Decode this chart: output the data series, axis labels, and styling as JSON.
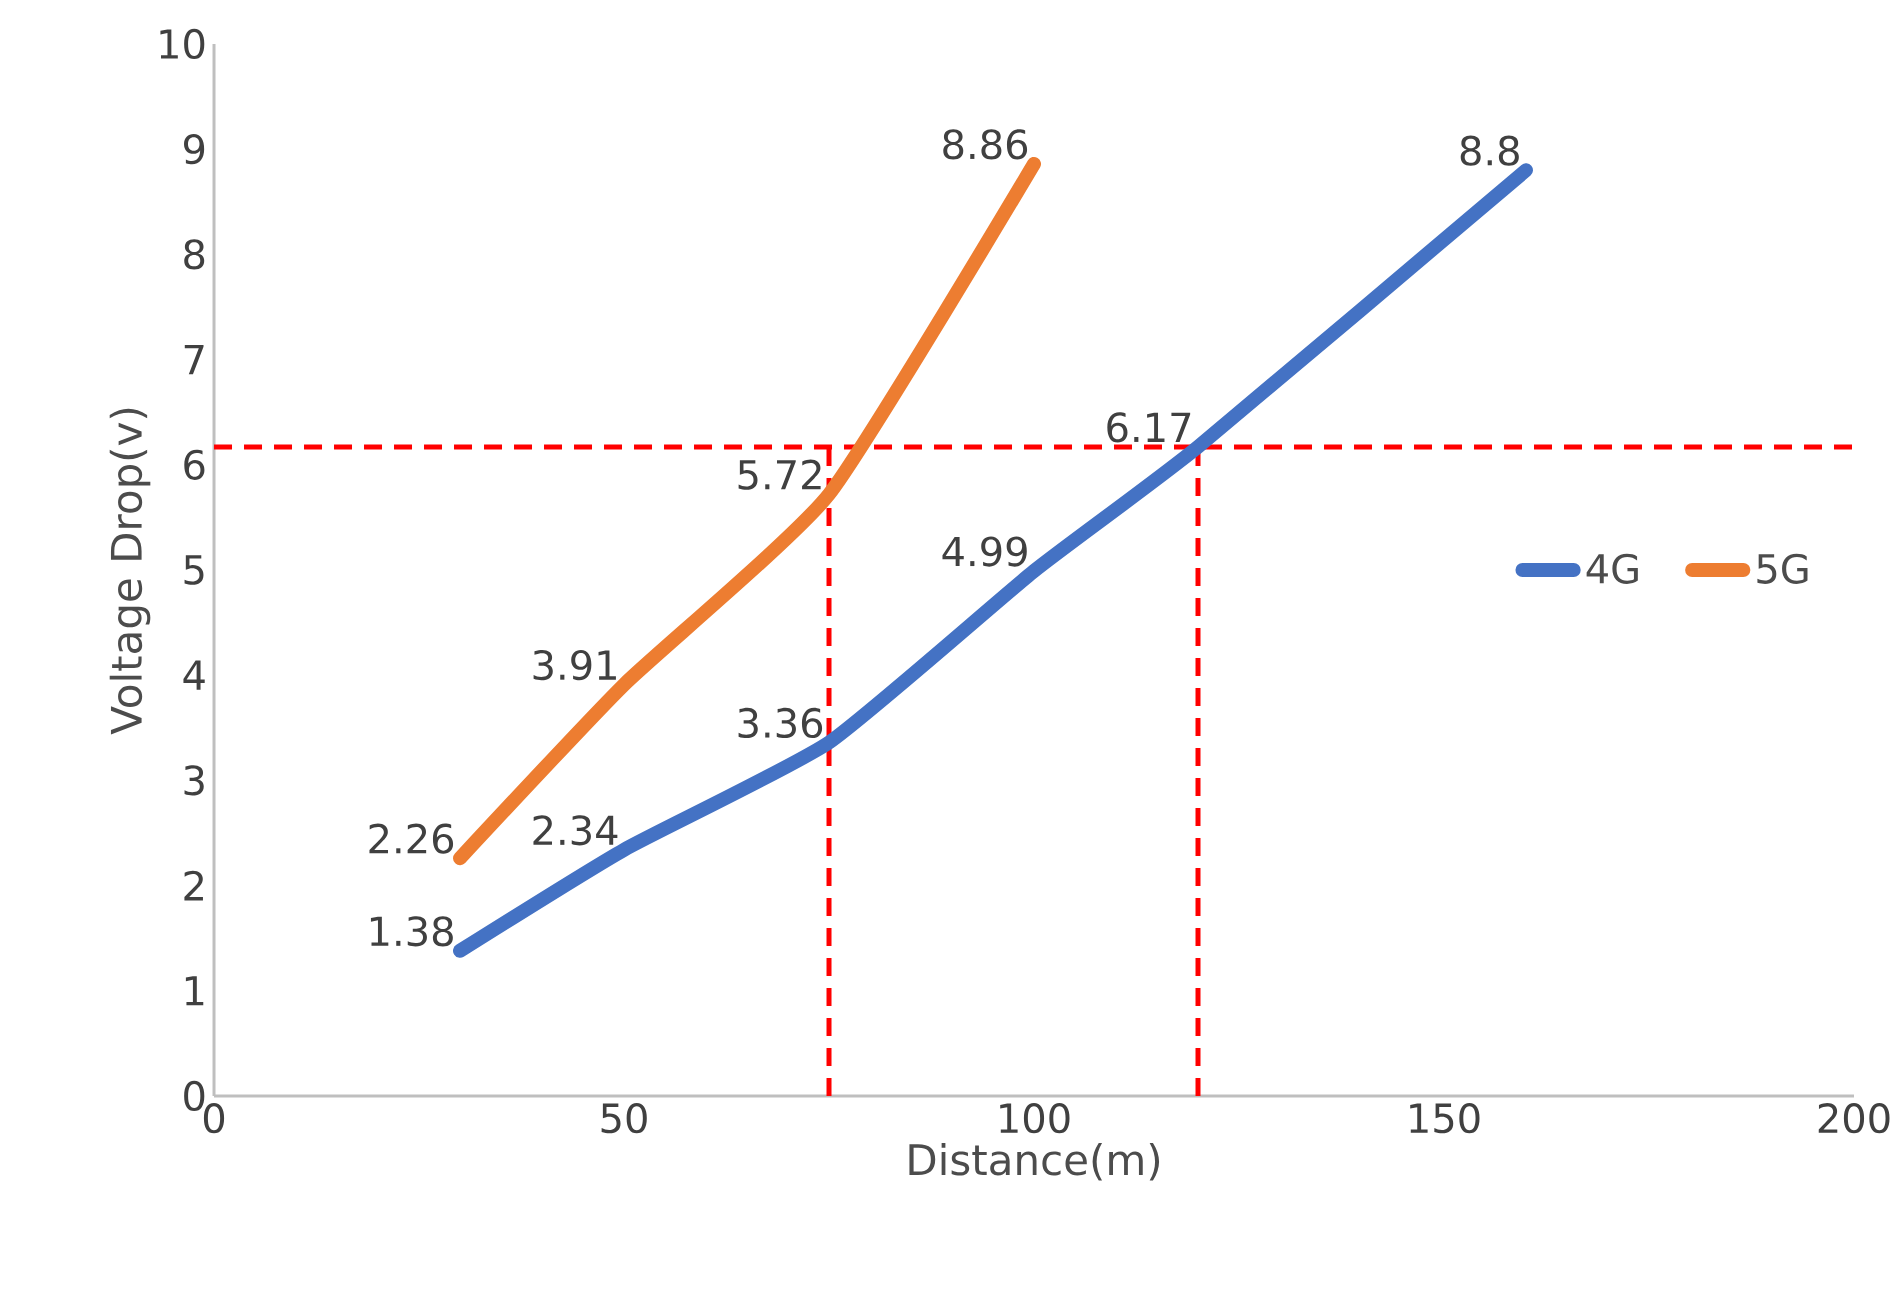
{
  "chart_data": {
    "type": "line",
    "xlabel": "Distance(m)",
    "ylabel": "Voltage Drop(v)",
    "xlim": [
      0,
      200
    ],
    "xticks": [
      0,
      50,
      100,
      150,
      200
    ],
    "ylim": [
      0,
      10
    ],
    "yticks": [
      0,
      1,
      2,
      3,
      4,
      5,
      6,
      7,
      8,
      9,
      10
    ],
    "grid": false,
    "legend": "right",
    "data_labels": true,
    "marker": "none",
    "line_style": "solid",
    "series": [
      {
        "name": "4G",
        "color": "#4472c4",
        "x": [
          30,
          50,
          75,
          100,
          120,
          160
        ],
        "values": [
          1.38,
          2.34,
          3.36,
          4.99,
          6.17,
          8.8
        ]
      },
      {
        "name": "5G",
        "color": "#ed7d31",
        "x": [
          30,
          50,
          75,
          100
        ],
        "values": [
          2.26,
          3.91,
          5.72,
          8.86
        ]
      }
    ],
    "ref_lines": [
      {
        "axis": "y",
        "value": 6.17,
        "color": "#ff0000",
        "line_style": "dashed"
      },
      {
        "axis": "x",
        "value": 75,
        "color": "#ff0000",
        "line_style": "dashed"
      },
      {
        "axis": "x",
        "value": 120,
        "color": "#ff0000",
        "line_style": "dashed"
      }
    ]
  }
}
